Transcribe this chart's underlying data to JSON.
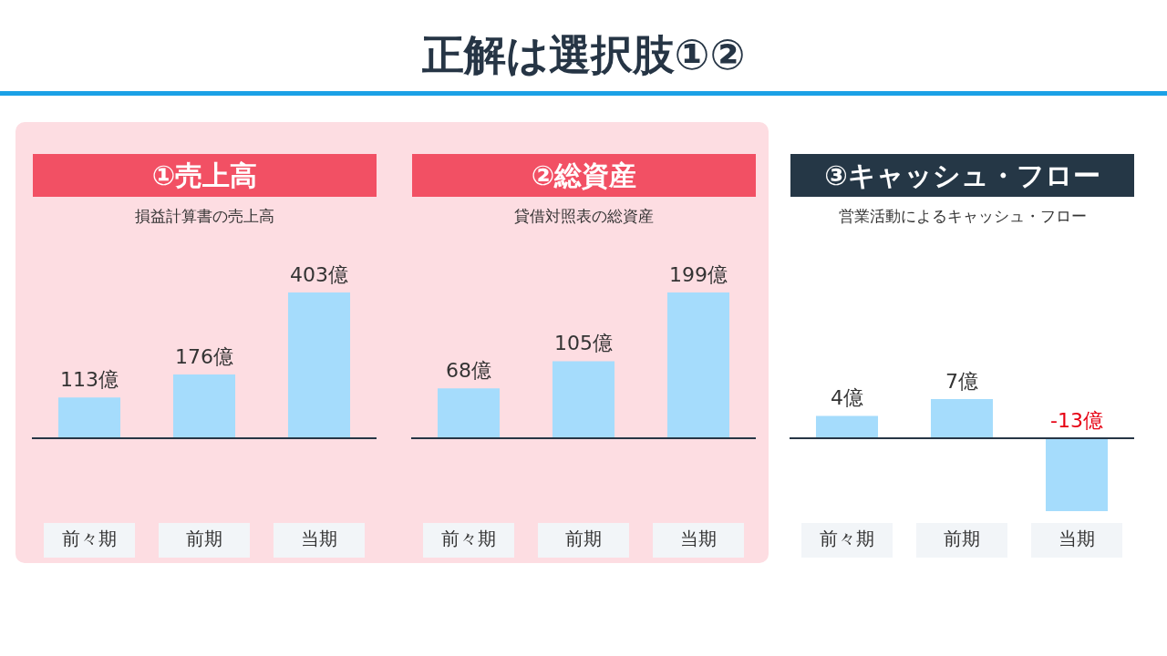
{
  "chart_data": [
    {
      "type": "other",
      "title": "正解は選択肢①②"
    },
    {
      "type": "bar",
      "title": "①売上高",
      "subtitle": "損益計算書の売上高",
      "categories": [
        "前々期",
        "前期",
        "当期"
      ],
      "values": [
        113,
        176,
        403
      ],
      "value_labels": [
        "113億",
        "176億",
        "403億"
      ],
      "color": "#a5dcfc"
    },
    {
      "type": "bar",
      "title": "②総資産",
      "subtitle": "貸借対照表の総資産",
      "categories": [
        "前々期",
        "前期",
        "当期"
      ],
      "values": [
        68,
        105,
        199
      ],
      "value_labels": [
        "68億",
        "105億",
        "199億"
      ],
      "color": "#a5dcfc"
    },
    {
      "type": "bar",
      "title": "③キャッシュ・フロー",
      "subtitle": "営業活動によるキャッシュ・フロー",
      "categories": [
        "前々期",
        "前期",
        "当期"
      ],
      "values": [
        4,
        7,
        -13
      ],
      "value_labels": [
        "4億",
        "7億",
        "-13億"
      ],
      "color": "#a5dcfc"
    }
  ]
}
